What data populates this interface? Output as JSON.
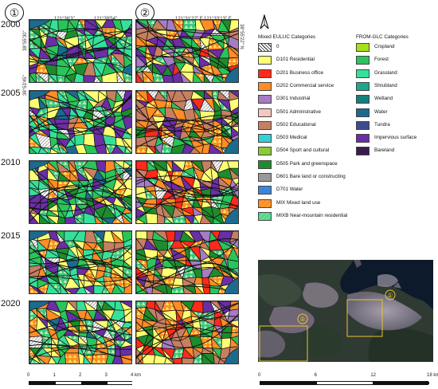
{
  "panels": [
    {
      "id": "1",
      "label": "①",
      "coord_top_left": "121°36'3\"",
      "coord_top_right": "121°39'54\"",
      "coord_side_top": "38°55'30\"",
      "coord_side_bottom": "38°53'45\""
    },
    {
      "id": "2",
      "label": "②",
      "coord_top_left": "121°31'22\" E",
      "coord_top_right": "121°33'13\" E",
      "coord_side_right": "38°55'22\" N"
    }
  ],
  "years": [
    "2000",
    "2005",
    "2010",
    "2015",
    "2020"
  ],
  "legend_euluc": {
    "title": "Mixed EULUC Categories",
    "items": [
      {
        "label": "0",
        "color": "#ffffff",
        "pattern": "hatch"
      },
      {
        "label": "D101 Residential",
        "color": "#ffff73"
      },
      {
        "label": "D201 Business office",
        "color": "#ff2a1a"
      },
      {
        "label": "D202 Commercial service",
        "color": "#ff8c26"
      },
      {
        "label": "D301 Industrial",
        "color": "#a67cc4"
      },
      {
        "label": "D501 Administrative",
        "color": "#f7c7bf"
      },
      {
        "label": "D502 Educational",
        "color": "#c77f62"
      },
      {
        "label": "D503 Medical",
        "color": "#33d1d6"
      },
      {
        "label": "D504 Sport and cultural",
        "color": "#8ccc33"
      },
      {
        "label": "D505 Park and greenspace",
        "color": "#1e8c2c"
      },
      {
        "label": "D601 Bare land or constructing",
        "color": "#999999"
      },
      {
        "label": "D701  Water",
        "color": "#3b86d9"
      },
      {
        "label": "MIX Mixed land use",
        "color": "#ff8c26",
        "pattern": "tri-yellow"
      },
      {
        "label": "MIXB Near-mountain residential",
        "color": "#52d98c",
        "pattern": "tri-green"
      }
    ]
  },
  "legend_glc": {
    "title": "FROM-GLC Categories",
    "items": [
      {
        "label": "Cropland",
        "color": "#a6e01a"
      },
      {
        "label": "Forest",
        "color": "#2bc45a"
      },
      {
        "label": "Grassland",
        "color": "#36e09a"
      },
      {
        "label": "Shrubland",
        "color": "#1ea68f"
      },
      {
        "label": "Wetland",
        "color": "#14807a"
      },
      {
        "label": "Water",
        "color": "#1c6b8f"
      },
      {
        "label": "Tundra",
        "color": "#3a4d8c"
      },
      {
        "label": "Impervious surface",
        "color": "#6a2ea6"
      },
      {
        "label": "Bareland",
        "color": "#3d1a4d"
      }
    ]
  },
  "scalebar_left": {
    "ticks": [
      "0",
      "1",
      "2",
      "3",
      "4 km"
    ],
    "values": [
      0,
      1,
      2,
      3,
      4
    ]
  },
  "scalebar_right": {
    "ticks": [
      "0",
      "6",
      "12",
      "18 km"
    ],
    "values": [
      0,
      6,
      12,
      18
    ]
  },
  "north_arrow": "north-arrow-icon",
  "satellite": {
    "marker_1": "①",
    "marker_2": "②"
  }
}
